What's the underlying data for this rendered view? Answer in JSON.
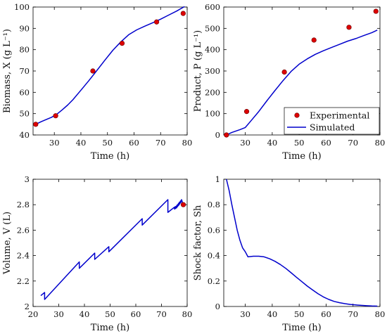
{
  "colors": {
    "simulated_line": "#0000cc",
    "experimental_marker": "#dd0000",
    "marker_edge": "#660000",
    "axis": "#000000"
  },
  "chart_data": [
    {
      "id": "biomass",
      "type": "line",
      "xlabel": "Time (h)",
      "ylabel": "Biomass, X (g L⁻¹)",
      "xlim": [
        22,
        80
      ],
      "ylim": [
        40,
        100
      ],
      "xticks": [
        30,
        40,
        50,
        60,
        70,
        80
      ],
      "yticks": [
        40,
        50,
        60,
        70,
        80,
        90,
        100
      ],
      "grid": false,
      "series": [
        {
          "name": "Simulated",
          "style": "line",
          "x": [
            23,
            25,
            27,
            29,
            31,
            33,
            35,
            37,
            40,
            43,
            46,
            49,
            52,
            55,
            58,
            61,
            64,
            67,
            70,
            73,
            76,
            79
          ],
          "y": [
            45,
            46.2,
            47.3,
            48.3,
            49.8,
            51.8,
            54,
            56.5,
            61,
            65.5,
            70.2,
            75,
            79.7,
            83.6,
            87,
            89.3,
            91,
            92.6,
            94.3,
            96.2,
            98.1,
            100.2
          ]
        },
        {
          "name": "Experimental",
          "style": "marker",
          "x": [
            23,
            30.5,
            44.5,
            55.5,
            68.5,
            78.5
          ],
          "y": [
            45,
            49,
            70,
            83,
            93,
            97
          ]
        }
      ]
    },
    {
      "id": "product",
      "type": "line",
      "xlabel": "Time (h)",
      "ylabel": "Product, P (g L⁻¹)",
      "xlim": [
        22,
        80
      ],
      "ylim": [
        0,
        600
      ],
      "xticks": [
        30,
        40,
        50,
        60,
        70,
        80
      ],
      "yticks": [
        0,
        100,
        200,
        300,
        400,
        500,
        600
      ],
      "grid": false,
      "legend": {
        "placement": "lower-right",
        "entries": [
          "Experimental",
          "Simulated"
        ]
      },
      "series": [
        {
          "name": "Simulated",
          "style": "line",
          "x": [
            23,
            25,
            28,
            30,
            32,
            35,
            38,
            41,
            44,
            47,
            50,
            53,
            56,
            59,
            62,
            65,
            68,
            71,
            74,
            77,
            79
          ],
          "y": [
            0,
            12,
            25,
            35,
            65,
            110,
            160,
            208,
            255,
            298,
            332,
            357,
            378,
            395,
            410,
            425,
            440,
            452,
            466,
            480,
            492
          ]
        },
        {
          "name": "Experimental",
          "style": "marker",
          "x": [
            23,
            30.5,
            44.5,
            55.5,
            68.5,
            78.5
          ],
          "y": [
            0,
            110,
            295,
            445,
            505,
            580
          ]
        }
      ]
    },
    {
      "id": "volume",
      "type": "line",
      "xlabel": "Time (h)",
      "ylabel": "Volume, V (L)",
      "xlim": [
        20,
        80
      ],
      "ylim": [
        2,
        3
      ],
      "xticks": [
        20,
        30,
        40,
        50,
        60,
        70,
        80
      ],
      "yticks": [
        2,
        2.2,
        2.4,
        2.6,
        2.8,
        3
      ],
      "ytick_labels": [
        "2",
        "2.2",
        "2.4",
        "2.6",
        "2.8",
        "3"
      ],
      "grid": false,
      "series": [
        {
          "name": "Simulated",
          "style": "line",
          "x": [
            23,
            24.5,
            24.5,
            38,
            38,
            44,
            44,
            49.5,
            49.5,
            62.5,
            62.5,
            72.5,
            72.5,
            75,
            75.1,
            75.4,
            75.5,
            75.8,
            75.9,
            76.2,
            76.3,
            76.6,
            76.7,
            77,
            77.1,
            77.4,
            77.5,
            77.8,
            78.5
          ],
          "y": [
            2.085,
            2.11,
            2.055,
            2.35,
            2.3,
            2.42,
            2.37,
            2.47,
            2.43,
            2.69,
            2.64,
            2.84,
            2.74,
            2.78,
            2.765,
            2.785,
            2.77,
            2.79,
            2.775,
            2.8,
            2.785,
            2.81,
            2.795,
            2.82,
            2.805,
            2.83,
            2.815,
            2.84,
            2.8
          ]
        },
        {
          "name": "Experimental",
          "style": "marker",
          "x": [
            78.5
          ],
          "y": [
            2.8
          ]
        }
      ]
    },
    {
      "id": "shock",
      "type": "line",
      "xlabel": "Time (h)",
      "ylabel": "Shock factor, Sh",
      "xlim": [
        22,
        80
      ],
      "ylim": [
        0,
        1
      ],
      "xticks": [
        30,
        40,
        50,
        60,
        70,
        80
      ],
      "yticks": [
        0,
        0.2,
        0.4,
        0.6,
        0.8,
        1
      ],
      "ytick_labels": [
        "0",
        "0.2",
        "0.4",
        "0.6",
        "0.8",
        "1"
      ],
      "grid": false,
      "series": [
        {
          "name": "Simulated",
          "style": "line",
          "x": [
            23,
            24,
            25,
            26,
            27,
            28,
            29,
            30,
            31,
            33,
            35,
            37,
            39,
            41,
            43,
            45,
            47,
            49,
            51,
            53,
            55,
            57,
            59,
            61,
            63,
            65,
            67,
            69,
            71,
            73,
            75,
            77,
            79
          ],
          "y": [
            1,
            0.91,
            0.8,
            0.7,
            0.6,
            0.52,
            0.46,
            0.43,
            0.39,
            0.395,
            0.395,
            0.39,
            0.375,
            0.355,
            0.33,
            0.3,
            0.265,
            0.23,
            0.195,
            0.16,
            0.13,
            0.1,
            0.075,
            0.055,
            0.04,
            0.03,
            0.022,
            0.016,
            0.012,
            0.009,
            0.006,
            0.004,
            0.003
          ]
        }
      ]
    }
  ]
}
